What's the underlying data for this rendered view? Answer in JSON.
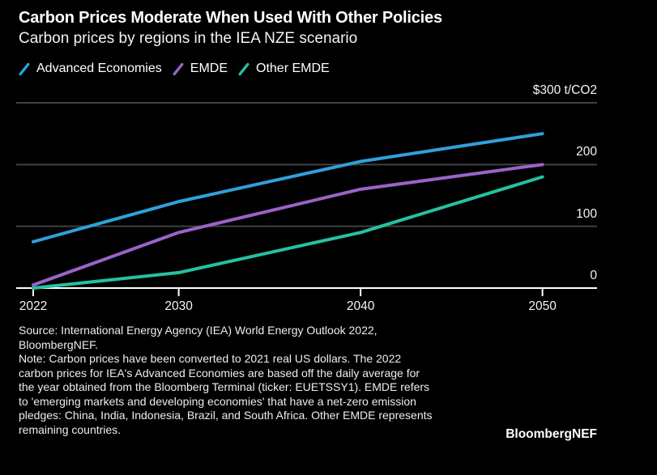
{
  "header": {
    "title": "Carbon Prices Moderate When Used With Other Policies",
    "subtitle": "Carbon prices by regions in the IEA NZE scenario"
  },
  "chart_data": {
    "type": "line",
    "x": [
      2022,
      2030,
      2040,
      2050
    ],
    "x_tick_labels": [
      "2022",
      "2030",
      "2040",
      "2050"
    ],
    "series": [
      {
        "name": "Advanced Economies",
        "color": "#2fa1d9",
        "values": [
          75,
          140,
          205,
          250
        ]
      },
      {
        "name": "EMDE",
        "color": "#9a63c9",
        "values": [
          5,
          90,
          160,
          200
        ]
      },
      {
        "name": "Other EMDE",
        "color": "#25c1a0",
        "values": [
          0,
          25,
          90,
          180
        ]
      }
    ],
    "y_axis": {
      "range": [
        0,
        300
      ],
      "ticks": [
        {
          "value": 300,
          "label": "$300 t/CO2"
        },
        {
          "value": 200,
          "label": "200"
        },
        {
          "value": 100,
          "label": "100"
        },
        {
          "value": 0,
          "label": "0"
        }
      ]
    },
    "grid": "horizontal-only",
    "legend_position": "top-left",
    "colors": {
      "background": "#000000",
      "gridline": "#424242",
      "axis": "#ffffff",
      "text": "#ffffff"
    }
  },
  "footer": {
    "lines": [
      "Source: International Energy Agency (IEA) World Energy Outlook 2022,",
      "BloombergNEF.",
      "Note: Carbon prices have been converted to 2021 real US dollars. The 2022",
      "carbon prices for IEA's Advanced Economies are based off the daily average for",
      "the year obtained from the Bloomberg Terminal (ticker: EUETSSY1). EMDE refers",
      "to 'emerging markets and developing economies' that have a net-zero emission",
      "pledges: China, India, Indonesia, Brazil, and South Africa. Other EMDE represents",
      "remaining countries."
    ],
    "logo": "BloombergNEF"
  }
}
